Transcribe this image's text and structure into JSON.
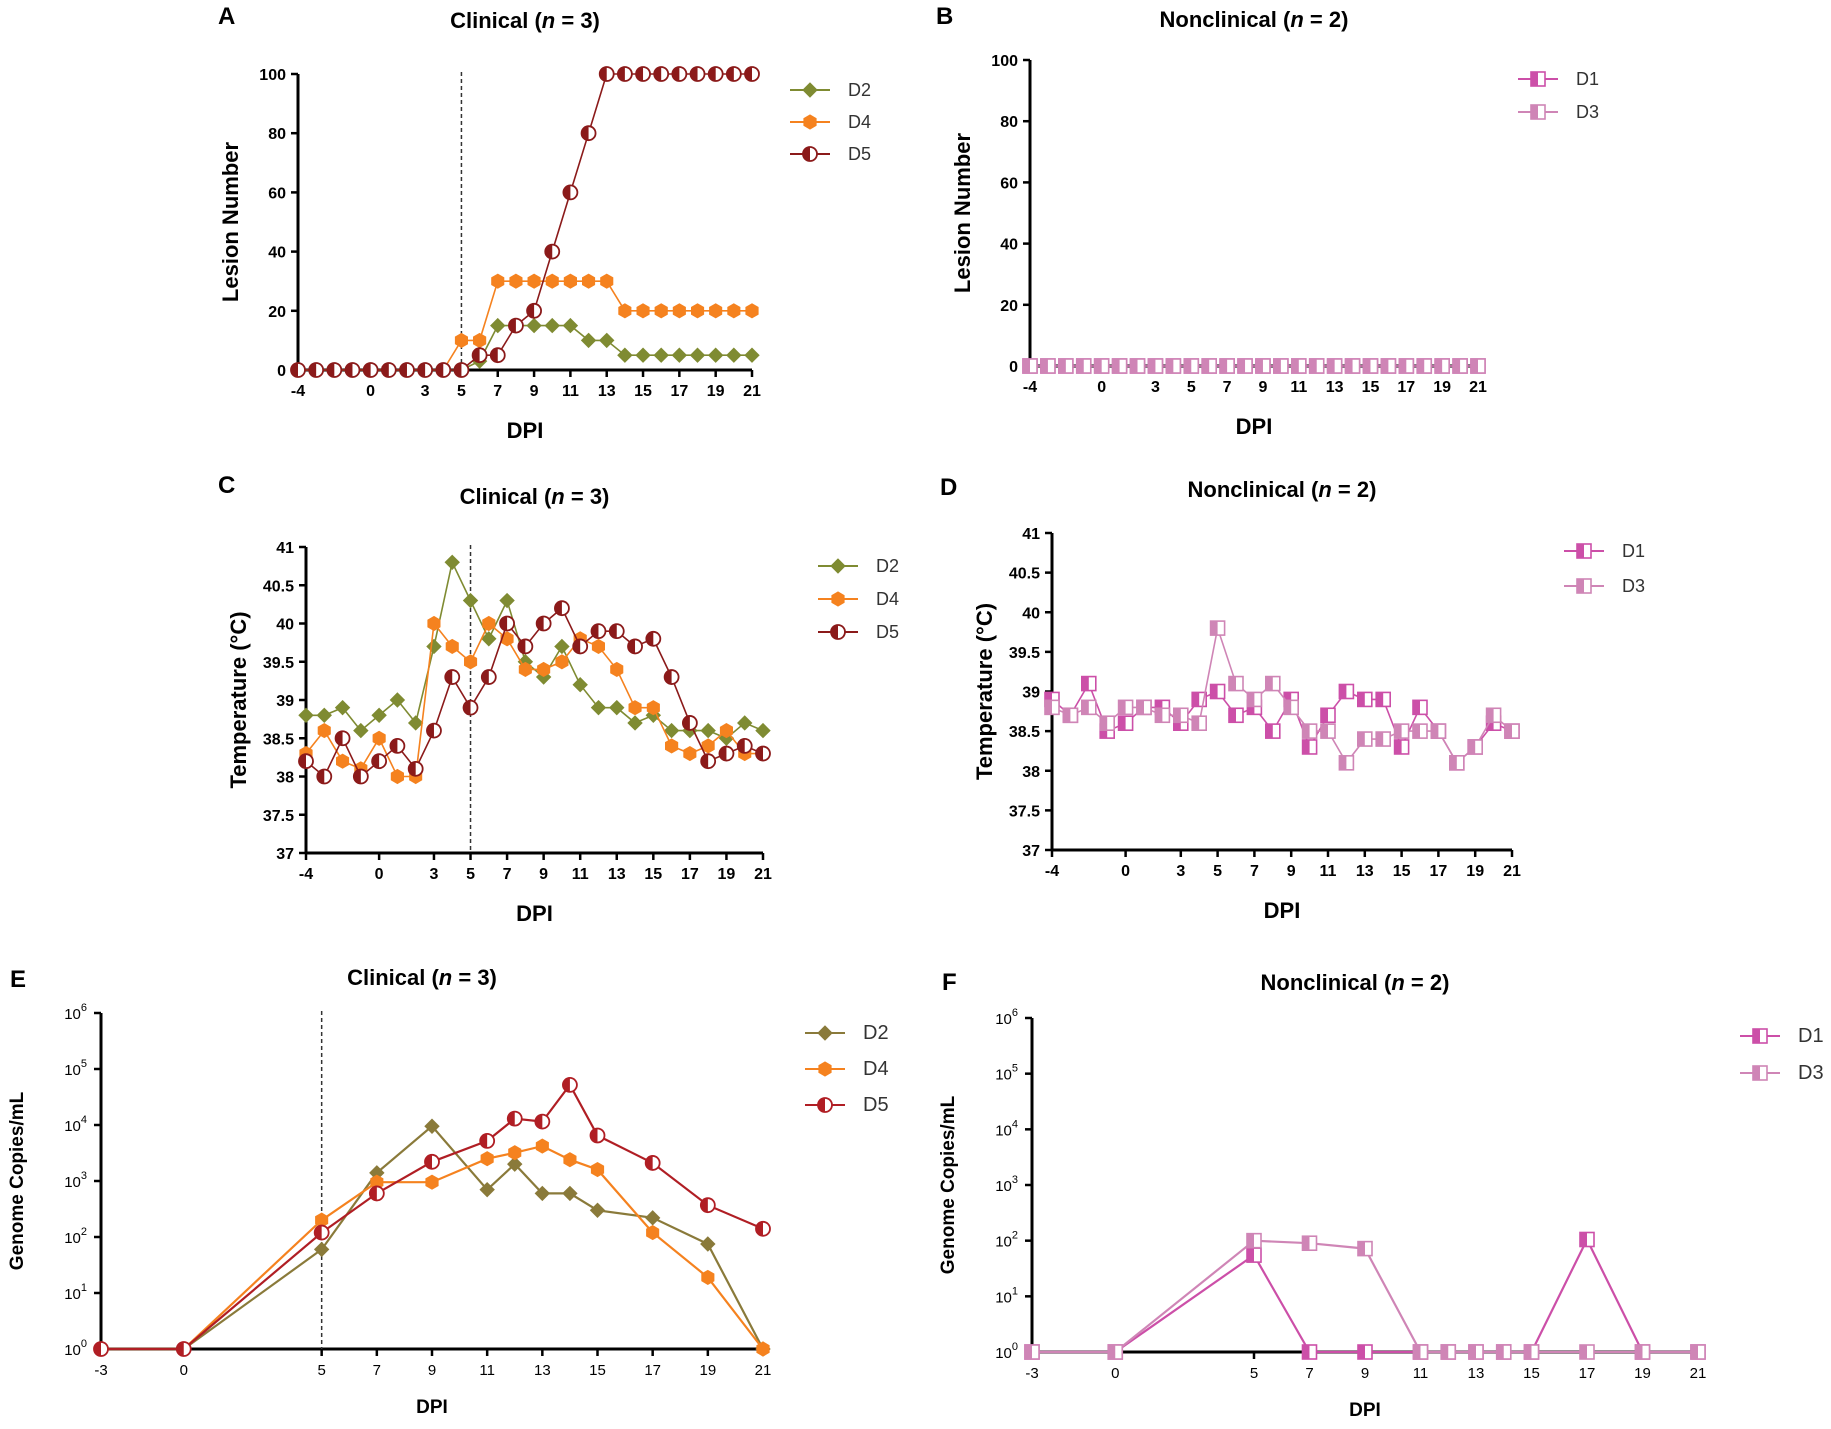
{
  "figure": {
    "panels": [
      "A",
      "B",
      "C",
      "D",
      "E",
      "F"
    ]
  },
  "colors": {
    "D2": "#7f8b32",
    "D4": "#f5821f",
    "D5": "#8b1a1a",
    "D1": "#cc4fa8",
    "D3": "#cf85b6",
    "E_D2": "#8a7a3a",
    "E_D5": "#b01e24"
  },
  "chart_data": [
    {
      "panel": "A",
      "type": "line",
      "title": "Clinical (n = 3)",
      "title_prefix": "Clinical (",
      "title_n": "n",
      "title_suffix": " = 3)",
      "xlabel": "DPI",
      "ylabel": "Lesion Number",
      "xlim": [
        -4,
        21
      ],
      "ylim": [
        0,
        100
      ],
      "x_ticks": [
        -4,
        0,
        3,
        5,
        7,
        9,
        11,
        13,
        15,
        17,
        19,
        21
      ],
      "x_ticklabels": [
        "-4",
        "0",
        "3",
        "5",
        "7",
        "9",
        "11",
        "13",
        "15",
        "17",
        "19",
        "21"
      ],
      "y_ticks": [
        0,
        20,
        40,
        60,
        80,
        100
      ],
      "y_ticklabels": [
        "0",
        "20",
        "40",
        "60",
        "80",
        "100"
      ],
      "dashed_line_x": 5,
      "x": [
        -4,
        -3,
        -2,
        -1,
        0,
        1,
        2,
        3,
        4,
        5,
        6,
        7,
        8,
        9,
        10,
        11,
        12,
        13,
        14,
        15,
        16,
        17,
        18,
        19,
        20,
        21
      ],
      "series": [
        {
          "name": "D2",
          "marker": "diamond",
          "values": [
            0,
            0,
            0,
            0,
            0,
            0,
            0,
            0,
            0,
            0,
            3,
            15,
            15,
            15,
            15,
            15,
            10,
            10,
            5,
            5,
            5,
            5,
            5,
            5,
            5,
            5
          ]
        },
        {
          "name": "D4",
          "marker": "hexagon",
          "values": [
            0,
            0,
            0,
            0,
            0,
            0,
            0,
            0,
            0,
            10,
            10,
            30,
            30,
            30,
            30,
            30,
            30,
            30,
            20,
            20,
            20,
            20,
            20,
            20,
            20,
            20
          ]
        },
        {
          "name": "D5",
          "marker": "half-circle",
          "values": [
            0,
            0,
            0,
            0,
            0,
            0,
            0,
            0,
            0,
            0,
            5,
            5,
            15,
            20,
            40,
            60,
            80,
            100,
            100,
            100,
            100,
            100,
            100,
            100,
            100,
            100
          ]
        }
      ]
    },
    {
      "panel": "B",
      "type": "line",
      "title": "Nonclinical (n = 2)",
      "title_prefix": "Nonclinical (",
      "title_n": "n",
      "title_suffix": " = 2)",
      "xlabel": "DPI",
      "ylabel": "Lesion Number",
      "xlim": [
        -4,
        21
      ],
      "ylim": [
        0,
        100
      ],
      "x_ticks": [
        -4,
        0,
        3,
        5,
        7,
        9,
        11,
        13,
        15,
        17,
        19,
        21
      ],
      "x_ticklabels": [
        "-4",
        "0",
        "3",
        "5",
        "7",
        "9",
        "11",
        "13",
        "15",
        "17",
        "19",
        "21"
      ],
      "y_ticks": [
        0,
        20,
        40,
        60,
        80,
        100
      ],
      "y_ticklabels": [
        "0",
        "20",
        "40",
        "60",
        "80",
        "100"
      ],
      "x": [
        -4,
        -3,
        -2,
        -1,
        0,
        1,
        2,
        3,
        4,
        5,
        6,
        7,
        8,
        9,
        10,
        11,
        12,
        13,
        14,
        15,
        16,
        17,
        18,
        19,
        20,
        21
      ],
      "series": [
        {
          "name": "D1",
          "marker": "half-square",
          "values": [
            0,
            0,
            0,
            0,
            0,
            0,
            0,
            0,
            0,
            0,
            0,
            0,
            0,
            0,
            0,
            0,
            0,
            0,
            0,
            0,
            0,
            0,
            0,
            0,
            0,
            0
          ]
        },
        {
          "name": "D3",
          "marker": "half-square-light",
          "values": [
            0,
            0,
            0,
            0,
            0,
            0,
            0,
            0,
            0,
            0,
            0,
            0,
            0,
            0,
            0,
            0,
            0,
            0,
            0,
            0,
            0,
            0,
            0,
            0,
            0,
            0
          ]
        }
      ]
    },
    {
      "panel": "C",
      "type": "line",
      "title": "Clinical (n = 3)",
      "title_prefix": "Clinical (",
      "title_n": "n",
      "title_suffix": " = 3)",
      "xlabel": "DPI",
      "ylabel": "Temperature (°C)",
      "xlim": [
        -4,
        21
      ],
      "ylim": [
        37,
        41
      ],
      "x_ticks": [
        -4,
        0,
        3,
        5,
        7,
        9,
        11,
        13,
        15,
        17,
        19,
        21
      ],
      "x_ticklabels": [
        "-4",
        "0",
        "3",
        "5",
        "7",
        "9",
        "11",
        "13",
        "15",
        "17",
        "19",
        "21"
      ],
      "y_ticks": [
        37,
        37.5,
        38,
        38.5,
        39,
        39.5,
        40,
        40.5,
        41
      ],
      "y_ticklabels": [
        "37",
        "37.5",
        "38",
        "38.5",
        "39",
        "39.5",
        "40",
        "40.5",
        "41"
      ],
      "dashed_line_x": 5,
      "x": [
        -4,
        -3,
        -2,
        -1,
        0,
        1,
        2,
        3,
        4,
        5,
        6,
        7,
        8,
        9,
        10,
        11,
        12,
        13,
        14,
        15,
        16,
        17,
        18,
        19,
        20,
        21
      ],
      "series": [
        {
          "name": "D2",
          "marker": "diamond",
          "values": [
            38.8,
            38.8,
            38.9,
            38.6,
            38.8,
            39.0,
            38.7,
            39.7,
            40.8,
            40.3,
            39.8,
            40.3,
            39.5,
            39.3,
            39.7,
            39.2,
            38.9,
            38.9,
            38.7,
            38.8,
            38.6,
            38.6,
            38.6,
            38.5,
            38.7,
            38.6
          ]
        },
        {
          "name": "D4",
          "marker": "hexagon",
          "values": [
            38.3,
            38.6,
            38.2,
            38.1,
            38.5,
            38.0,
            38.0,
            40.0,
            39.7,
            39.5,
            40.0,
            39.8,
            39.4,
            39.4,
            39.5,
            39.8,
            39.7,
            39.4,
            38.9,
            38.9,
            38.4,
            38.3,
            38.4,
            38.6,
            38.3,
            38.3
          ]
        },
        {
          "name": "D5",
          "marker": "half-circle",
          "values": [
            38.2,
            38.0,
            38.5,
            38.0,
            38.2,
            38.4,
            38.1,
            38.6,
            39.3,
            38.9,
            39.3,
            40.0,
            39.7,
            40.0,
            40.2,
            39.7,
            39.9,
            39.9,
            39.7,
            39.8,
            39.3,
            38.7,
            38.2,
            38.3,
            38.4,
            38.3
          ]
        }
      ]
    },
    {
      "panel": "D",
      "type": "line",
      "title": "Nonclinical (n = 2)",
      "title_prefix": "Nonclinical (",
      "title_n": "n",
      "title_suffix": " = 2)",
      "xlabel": "DPI",
      "ylabel": "Temperature (°C)",
      "xlim": [
        -4,
        21
      ],
      "ylim": [
        37,
        41
      ],
      "x_ticks": [
        -4,
        0,
        3,
        5,
        7,
        9,
        11,
        13,
        15,
        17,
        19,
        21
      ],
      "x_ticklabels": [
        "-4",
        "0",
        "3",
        "5",
        "7",
        "9",
        "11",
        "13",
        "15",
        "17",
        "19",
        "21"
      ],
      "y_ticks": [
        37,
        37.5,
        38,
        38.5,
        39,
        39.5,
        40,
        40.5,
        41
      ],
      "y_ticklabels": [
        "37",
        "37.5",
        "38",
        "38.5",
        "39",
        "39.5",
        "40",
        "40.5",
        "41"
      ],
      "x": [
        -4,
        -3,
        -2,
        -1,
        0,
        1,
        2,
        3,
        4,
        5,
        6,
        7,
        8,
        9,
        10,
        11,
        12,
        13,
        14,
        15,
        16,
        17,
        18,
        19,
        20,
        21
      ],
      "series": [
        {
          "name": "D1",
          "marker": "half-square",
          "values": [
            38.9,
            38.7,
            39.1,
            38.5,
            38.6,
            38.8,
            38.8,
            38.6,
            38.9,
            39.0,
            38.7,
            38.8,
            38.5,
            38.9,
            38.3,
            38.7,
            39.0,
            38.9,
            38.9,
            38.3,
            38.8,
            38.5,
            38.1,
            38.3,
            38.6,
            38.5
          ]
        },
        {
          "name": "D3",
          "marker": "half-square-light",
          "values": [
            38.8,
            38.7,
            38.8,
            38.6,
            38.8,
            38.8,
            38.7,
            38.7,
            38.6,
            39.8,
            39.1,
            38.9,
            39.1,
            38.8,
            38.5,
            38.5,
            38.1,
            38.4,
            38.4,
            38.5,
            38.5,
            38.5,
            38.1,
            38.3,
            38.7,
            38.5
          ]
        }
      ]
    },
    {
      "panel": "E",
      "type": "line",
      "title": "Clinical (n = 3)",
      "title_prefix": "Clinical (",
      "title_n": "n",
      "title_suffix": " = 3)",
      "xlabel": "DPI",
      "ylabel": "Genome Copies/mL",
      "yscale": "log10",
      "xlim": [
        -3,
        21
      ],
      "ylim_exponent": [
        0,
        6
      ],
      "x_ticks": [
        -3,
        0,
        5,
        7,
        9,
        11,
        13,
        15,
        17,
        19,
        21
      ],
      "x_ticklabels": [
        "-3",
        "0",
        "5",
        "7",
        "9",
        "11",
        "13",
        "15",
        "17",
        "19",
        "21"
      ],
      "y_tick_exponents": [
        0,
        1,
        2,
        3,
        4,
        5,
        6
      ],
      "y_tick_base": "10",
      "y_tick_exp_labels": [
        "0",
        "1",
        "2",
        "3",
        "4",
        "5",
        "6"
      ],
      "dashed_line_x": 5,
      "series": [
        {
          "name": "D2",
          "marker": "diamond",
          "x": [
            -3,
            0,
            5,
            7,
            9,
            11,
            12,
            13,
            14,
            15,
            17,
            19,
            21
          ],
          "values": [
            1,
            1,
            60,
            1400,
            9500,
            700,
            2000,
            600,
            600,
            300,
            220,
            75,
            1
          ]
        },
        {
          "name": "D4",
          "marker": "hexagon",
          "x": [
            -3,
            0,
            5,
            7,
            9,
            11,
            12,
            13,
            14,
            15,
            17,
            19,
            21
          ],
          "values": [
            1,
            1,
            200,
            950,
            950,
            2500,
            3200,
            4200,
            2400,
            1600,
            120,
            19,
            1
          ]
        },
        {
          "name": "D5",
          "marker": "half-circle",
          "x": [
            -3,
            0,
            5,
            7,
            9,
            11,
            12,
            13,
            14,
            15,
            17,
            19,
            21
          ],
          "values": [
            1,
            1,
            120,
            600,
            2200,
            5200,
            13000,
            11500,
            52000,
            6500,
            2100,
            370,
            140
          ]
        }
      ]
    },
    {
      "panel": "F",
      "type": "line",
      "title": "Nonclinical (n = 2)",
      "title_prefix": "Nonclinical (",
      "title_n": "n",
      "title_suffix": " = 2)",
      "xlabel": "DPI",
      "ylabel": "Genome Copies/mL",
      "yscale": "log10",
      "xlim": [
        -3,
        21
      ],
      "ylim_exponent": [
        0,
        6
      ],
      "x_ticks": [
        -3,
        0,
        5,
        7,
        9,
        11,
        13,
        15,
        17,
        19,
        21
      ],
      "x_ticklabels": [
        "-3",
        "0",
        "5",
        "7",
        "9",
        "11",
        "13",
        "15",
        "17",
        "19",
        "21"
      ],
      "y_tick_exponents": [
        0,
        1,
        2,
        3,
        4,
        5,
        6
      ],
      "y_tick_base": "10",
      "y_tick_exp_labels": [
        "0",
        "1",
        "2",
        "3",
        "4",
        "5",
        "6"
      ],
      "series": [
        {
          "name": "D1",
          "marker": "half-square",
          "x": [
            -3,
            0,
            5,
            7,
            9,
            11,
            12,
            13,
            14,
            15,
            17,
            19,
            21
          ],
          "values": [
            1,
            1,
            55,
            1,
            1,
            1,
            1,
            1,
            1,
            1,
            105,
            1,
            1
          ]
        },
        {
          "name": "D3",
          "marker": "half-square-light",
          "x": [
            -3,
            0,
            5,
            7,
            9,
            11,
            12,
            13,
            14,
            15,
            17,
            19,
            21
          ],
          "values": [
            1,
            1,
            100,
            90,
            72,
            1,
            1,
            1,
            1,
            1,
            1,
            1,
            1
          ]
        }
      ]
    }
  ]
}
